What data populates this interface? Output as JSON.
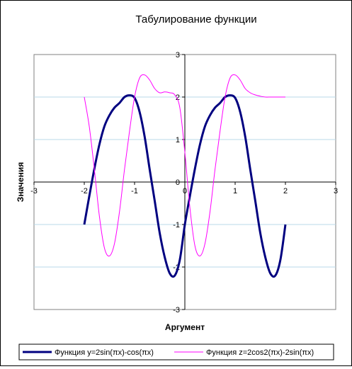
{
  "chart_data": {
    "type": "line",
    "title": "Табулирование функции",
    "xlabel": "Аргумент",
    "ylabel": "Значения",
    "xlim": [
      -3,
      3
    ],
    "ylim": [
      -3,
      3
    ],
    "x_ticks": [
      "-3",
      "-2",
      "-1",
      "0",
      "1",
      "2",
      "3"
    ],
    "y_ticks": [
      "-3",
      "-2",
      "-1",
      "0",
      "1",
      "2",
      "3"
    ],
    "grid": "horizontal",
    "legend_position": "bottom",
    "x": [
      -2.0,
      -1.9,
      -1.8,
      -1.7,
      -1.6,
      -1.5,
      -1.4,
      -1.3,
      -1.2,
      -1.1,
      -1.0,
      -0.9,
      -0.8,
      -0.7,
      -0.6,
      -0.5,
      -0.4,
      -0.3,
      -0.2,
      -0.1,
      0.0,
      0.1,
      0.2,
      0.3,
      0.4,
      0.5,
      0.6,
      0.7,
      0.8,
      0.9,
      1.0,
      1.1,
      1.2,
      1.3,
      1.4,
      1.5,
      1.6,
      1.7,
      1.8,
      1.9,
      2.0
    ],
    "series": [
      {
        "name": "Функция y=2sin(πx)-cos(πx)",
        "color": "#000080",
        "values": [
          -1.0,
          -0.33,
          0.31,
          0.88,
          1.31,
          1.57,
          1.75,
          1.86,
          2.0,
          2.04,
          1.98,
          1.65,
          1.07,
          0.3,
          -0.44,
          -1.2,
          -1.77,
          -2.15,
          -2.2,
          -1.83,
          -1.0,
          -0.33,
          0.31,
          0.88,
          1.31,
          1.57,
          1.75,
          1.86,
          2.0,
          2.04,
          1.98,
          1.65,
          1.07,
          0.3,
          -0.44,
          -1.2,
          -1.77,
          -2.15,
          -2.2,
          -1.83,
          -1.0
        ]
      },
      {
        "name": "Функция z=2cos2(πx)-2sin(πx)",
        "color": "#ff00ff",
        "values": [
          2.0,
          1.3,
          0.3,
          -0.8,
          -1.55,
          -1.74,
          -1.45,
          -0.7,
          0.3,
          1.2,
          2.0,
          2.45,
          2.52,
          2.4,
          2.2,
          2.1,
          2.12,
          2.1,
          2.05,
          1.75,
          0.7,
          -0.6,
          -1.5,
          -1.74,
          -1.45,
          -0.7,
          0.3,
          1.2,
          2.0,
          2.45,
          2.52,
          2.4,
          2.2,
          2.1,
          2.05,
          2.02,
          2.0,
          2.0,
          2.0,
          2.0,
          2.0
        ]
      }
    ]
  }
}
